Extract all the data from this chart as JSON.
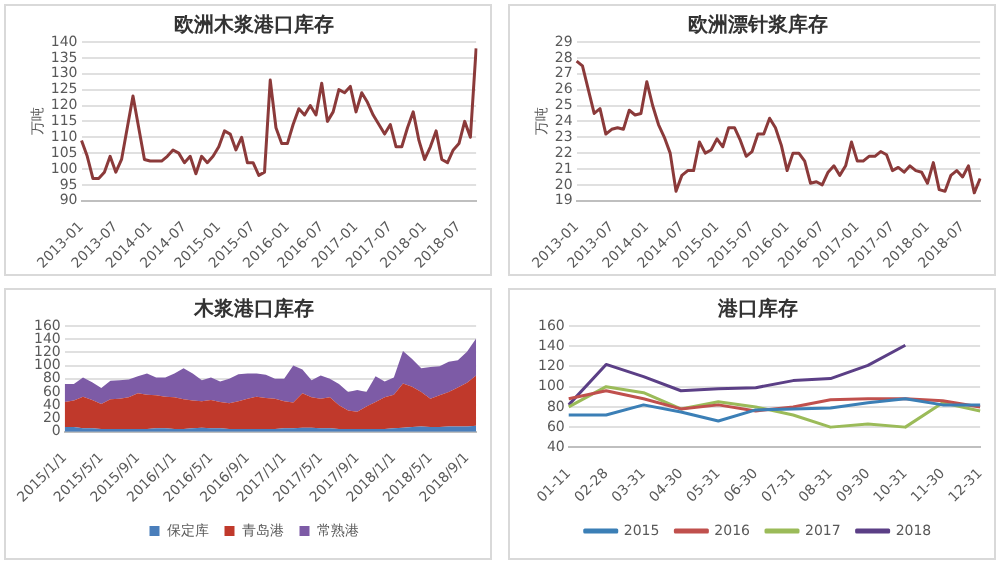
{
  "chart_data": [
    {
      "type": "line",
      "title": "欧洲木浆港口库存",
      "ylabel": "万吨",
      "grid": "y",
      "marker": "none",
      "legend": false,
      "categories": [
        "2013-01",
        null,
        null,
        null,
        null,
        null,
        "2013-07",
        null,
        null,
        null,
        null,
        null,
        "2014-01",
        null,
        null,
        null,
        null,
        null,
        "2014-07",
        null,
        null,
        null,
        null,
        null,
        "2015-01",
        null,
        null,
        null,
        null,
        null,
        "2015-07",
        null,
        null,
        null,
        null,
        null,
        "2016-01",
        null,
        null,
        null,
        null,
        null,
        "2016-07",
        null,
        null,
        null,
        null,
        null,
        "2017-01",
        null,
        null,
        null,
        null,
        null,
        "2017-07",
        null,
        null,
        null,
        null,
        null,
        "2018-01",
        null,
        null,
        null,
        null,
        null,
        "2018-07",
        null,
        null,
        null
      ],
      "color": "#8b3a3a",
      "values": [
        109,
        104,
        97,
        97,
        99,
        104,
        99,
        103,
        113,
        123,
        113,
        103,
        102.5,
        102.5,
        102.5,
        104,
        106,
        105,
        102,
        104,
        98.5,
        104,
        102,
        104,
        107,
        112,
        111,
        106,
        110,
        102,
        102,
        98,
        99,
        128,
        113,
        108,
        108,
        114,
        119,
        117,
        120,
        117,
        127,
        115,
        118,
        125,
        124,
        126,
        118,
        124,
        121,
        117,
        114,
        111,
        114,
        107,
        107,
        113,
        118,
        109,
        103,
        107,
        112,
        103,
        102,
        106,
        108,
        115,
        110,
        138
      ],
      "ylim": [
        90,
        140
      ],
      "yticks": [
        90,
        95,
        100,
        105,
        110,
        115,
        120,
        125,
        130,
        135,
        140
      ]
    },
    {
      "type": "line",
      "title": "欧洲漂针浆库存",
      "ylabel": "万吨",
      "grid": "y",
      "marker": "none",
      "legend": false,
      "categories": [
        "2013-01",
        null,
        null,
        null,
        null,
        null,
        "2013-07",
        null,
        null,
        null,
        null,
        null,
        "2014-01",
        null,
        null,
        null,
        null,
        null,
        "2014-07",
        null,
        null,
        null,
        null,
        null,
        "2015-01",
        null,
        null,
        null,
        null,
        null,
        "2015-07",
        null,
        null,
        null,
        null,
        null,
        "2016-01",
        null,
        null,
        null,
        null,
        null,
        "2016-07",
        null,
        null,
        null,
        null,
        null,
        "2017-01",
        null,
        null,
        null,
        null,
        null,
        "2017-07",
        null,
        null,
        null,
        null,
        null,
        "2018-01",
        null,
        null,
        null,
        null,
        null,
        "2018-07",
        null,
        null,
        null
      ],
      "color": "#8b3a3a",
      "values": [
        27.8,
        27.5,
        26,
        24.5,
        24.8,
        23.2,
        23.5,
        23.6,
        23.5,
        24.7,
        24.4,
        24.5,
        26.5,
        25,
        23.8,
        23,
        22,
        19.6,
        20.6,
        20.9,
        20.9,
        22.7,
        22.0,
        22.2,
        22.9,
        22.4,
        23.6,
        23.6,
        22.8,
        21.8,
        22.1,
        23.2,
        23.2,
        24.2,
        23.6,
        22.5,
        20.9,
        22.0,
        22.0,
        21.5,
        20.1,
        20.2,
        20.0,
        20.8,
        21.2,
        20.6,
        21.2,
        22.7,
        21.5,
        21.5,
        21.8,
        21.8,
        22.1,
        21.9,
        20.9,
        21.1,
        20.8,
        21.2,
        20.9,
        20.8,
        20.1,
        21.4,
        19.7,
        19.6,
        20.6,
        20.9,
        20.5,
        21.2,
        19.5,
        20.4
      ],
      "ylim": [
        19,
        29
      ],
      "yticks": [
        19,
        20,
        21,
        22,
        23,
        24,
        25,
        26,
        27,
        28,
        29
      ]
    },
    {
      "type": "area",
      "title": "木浆港口库存",
      "stacked": true,
      "grid": "y",
      "marker": "none",
      "legend": "bottom",
      "categories": [
        "2015/1/1",
        null,
        null,
        null,
        "2015/5/1",
        null,
        null,
        null,
        "2015/9/1",
        null,
        null,
        null,
        "2016/1/1",
        null,
        null,
        null,
        "2016/5/1",
        null,
        null,
        null,
        "2016/9/1",
        null,
        null,
        null,
        "2017/1/1",
        null,
        null,
        null,
        "2017/5/1",
        null,
        null,
        null,
        "2017/9/1",
        null,
        null,
        null,
        "2018/1/1",
        null,
        null,
        null,
        "2018/5/1",
        null,
        null,
        null,
        "2018/9/1",
        null
      ],
      "series": [
        {
          "name": "保定库",
          "color": "#4a7ebb",
          "values": [
            7,
            7,
            5,
            5,
            4,
            4,
            4,
            4,
            4,
            4,
            5,
            5,
            4,
            4,
            5,
            6,
            5,
            5,
            4,
            4,
            4,
            4,
            4,
            4,
            5,
            5,
            6,
            6,
            5,
            5,
            4,
            4,
            4,
            4,
            4,
            4,
            5,
            6,
            7,
            8,
            7,
            7,
            8,
            8,
            8,
            9
          ]
        },
        {
          "name": "青岛港",
          "color": "#c0392b",
          "values": [
            38,
            40,
            48,
            43,
            38,
            45,
            46,
            48,
            54,
            52,
            50,
            48,
            48,
            45,
            42,
            40,
            43,
            40,
            39,
            42,
            46,
            49,
            47,
            46,
            41,
            39,
            52,
            46,
            45,
            47,
            36,
            28,
            26,
            34,
            41,
            48,
            51,
            67,
            61,
            52,
            43,
            48,
            52,
            59,
            66,
            76
          ]
        },
        {
          "name": "常熟港",
          "color": "#7d5ba6",
          "values": [
            27,
            25,
            29,
            27,
            24,
            28,
            28,
            27,
            26,
            32,
            27,
            29,
            36,
            47,
            41,
            32,
            34,
            31,
            37,
            41,
            38,
            35,
            35,
            30,
            34,
            56,
            36,
            26,
            35,
            28,
            32,
            28,
            33,
            22,
            39,
            24,
            26,
            49,
            42,
            36,
            48,
            44,
            46,
            41,
            47,
            56
          ]
        }
      ],
      "ylim": [
        0,
        160
      ],
      "yticks": [
        0,
        20,
        40,
        60,
        80,
        100,
        120,
        140,
        160
      ]
    },
    {
      "type": "line",
      "title": "港口库存",
      "grid": "y",
      "marker": "none",
      "legend": "bottom",
      "categories": [
        "01-11",
        "02-28",
        "03-31",
        "04-30",
        "05-31",
        "06-30",
        "07-31",
        "08-31",
        "09-30",
        "10-31",
        "11-30",
        "12-31"
      ],
      "series": [
        {
          "name": "2015",
          "color": "#3b7fb6",
          "values": [
            72,
            72,
            82,
            75,
            66,
            77,
            78,
            79,
            84,
            88,
            82,
            82
          ]
        },
        {
          "name": "2016",
          "color": "#c0504d",
          "values": [
            88,
            96,
            88,
            78,
            82,
            76,
            80,
            87,
            88,
            88,
            86,
            80
          ]
        },
        {
          "name": "2017",
          "color": "#9bbb59",
          "values": [
            80,
            100,
            94,
            78,
            85,
            80,
            72,
            60,
            63,
            60,
            84,
            76
          ]
        },
        {
          "name": "2018",
          "color": "#5b3f86",
          "values": [
            82,
            122,
            110,
            96,
            98,
            99,
            106,
            108,
            121,
            141,
            null,
            null
          ]
        }
      ],
      "ylim": [
        40,
        160
      ],
      "yticks": [
        40,
        60,
        80,
        100,
        120,
        140,
        160
      ]
    }
  ]
}
